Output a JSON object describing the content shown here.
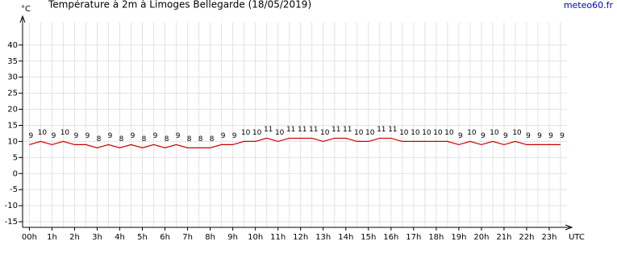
{
  "chart_data": {
    "type": "line",
    "title": "Température à 2m à Limoges Bellegarde (18/05/2019)",
    "source": "meteo60.fr",
    "y_unit": "°C",
    "x_unit": "UTC",
    "x": [
      0,
      0.5,
      1,
      1.5,
      2,
      2.5,
      3,
      3.5,
      4,
      4.5,
      5,
      5.5,
      6,
      6.5,
      7,
      7.5,
      8,
      8.5,
      9,
      9.5,
      10,
      10.5,
      11,
      11.5,
      12,
      12.5,
      13,
      13.5,
      14,
      14.5,
      15,
      15.5,
      16,
      16.5,
      17,
      17.5,
      18,
      18.5,
      19,
      19.5,
      20,
      20.5,
      21,
      21.5,
      22,
      22.5,
      23,
      23.5
    ],
    "series": [
      {
        "name": "Température",
        "color": "#cc0000",
        "values": [
          9,
          10,
          9,
          10,
          9,
          9,
          8,
          9,
          8,
          9,
          8,
          9,
          8,
          9,
          8,
          8,
          8,
          9,
          9,
          10,
          10,
          11,
          10,
          11,
          11,
          11,
          10,
          11,
          11,
          10,
          10,
          11,
          11,
          10,
          10,
          10,
          10,
          10,
          9,
          10,
          9,
          10,
          9,
          10,
          9,
          9,
          9,
          9
        ]
      }
    ],
    "xlim": [
      -0.3,
      24
    ],
    "xticks": [
      {
        "value": 0,
        "label": "00h"
      },
      {
        "value": 1,
        "label": "1h"
      },
      {
        "value": 2,
        "label": "2h"
      },
      {
        "value": 3,
        "label": "3h"
      },
      {
        "value": 4,
        "label": "4h"
      },
      {
        "value": 5,
        "label": "5h"
      },
      {
        "value": 6,
        "label": "6h"
      },
      {
        "value": 7,
        "label": "7h"
      },
      {
        "value": 8,
        "label": "8h"
      },
      {
        "value": 9,
        "label": "9h"
      },
      {
        "value": 10,
        "label": "10h"
      },
      {
        "value": 11,
        "label": "11h"
      },
      {
        "value": 12,
        "label": "12h"
      },
      {
        "value": 13,
        "label": "13h"
      },
      {
        "value": 14,
        "label": "14h"
      },
      {
        "value": 15,
        "label": "15h"
      },
      {
        "value": 16,
        "label": "16h"
      },
      {
        "value": 17,
        "label": "17h"
      },
      {
        "value": 18,
        "label": "18h"
      },
      {
        "value": 19,
        "label": "19h"
      },
      {
        "value": 20,
        "label": "20h"
      },
      {
        "value": 21,
        "label": "21h"
      },
      {
        "value": 22,
        "label": "22h"
      },
      {
        "value": 23,
        "label": "23h"
      }
    ],
    "ylim": [
      -17,
      49
    ],
    "yticks": [
      -15,
      -10,
      -5,
      0,
      5,
      10,
      15,
      20,
      25,
      30,
      35,
      40
    ],
    "grid": true
  }
}
